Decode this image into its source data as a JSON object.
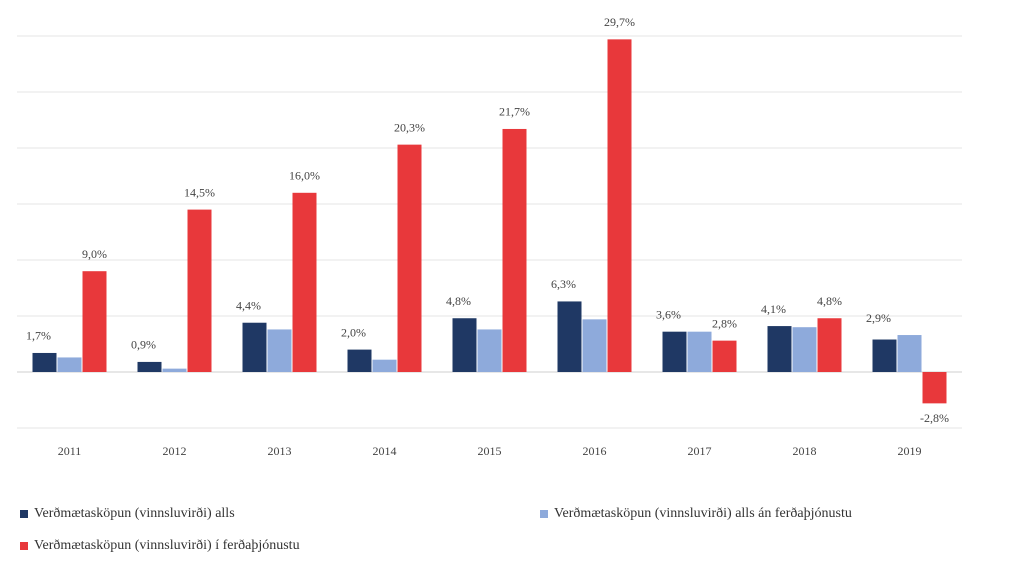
{
  "chart_data": {
    "type": "bar",
    "categories": [
      "2011",
      "2012",
      "2013",
      "2014",
      "2015",
      "2016",
      "2017",
      "2018",
      "2019"
    ],
    "series": [
      {
        "name": "Verðmætasköpun (vinnsluvirði) alls",
        "color": "#1f3864",
        "values": [
          1.7,
          0.9,
          4.4,
          2.0,
          4.8,
          6.3,
          3.6,
          4.1,
          2.9
        ],
        "value_labels": [
          "1,7%",
          "0,9%",
          "4,4%",
          "2,0%",
          "4,8%",
          "6,3%",
          "3,6%",
          "4,1%",
          "2,9%"
        ]
      },
      {
        "name": "Verðmætasköpun (vinnsluvirði) alls án ferðaþjónustu",
        "color": "#8eaadb",
        "values": [
          1.3,
          0.3,
          3.8,
          1.1,
          3.8,
          4.7,
          3.6,
          4.0,
          3.3
        ]
      },
      {
        "name": "Verðmætasköpun (vinnsluvirði) í ferðaþjónustu",
        "color": "#e8383b",
        "values": [
          9.0,
          14.5,
          16.0,
          20.3,
          21.7,
          29.7,
          2.8,
          4.8,
          -2.8
        ],
        "value_labels": [
          "9,0%",
          "14,5%",
          "16,0%",
          "20,3%",
          "21,7%",
          "29,7%",
          "2,8%",
          "4,8%",
          "-2,8%"
        ]
      }
    ],
    "ylim": [
      -5,
      30
    ],
    "yticks": [
      -5,
      0,
      5,
      10,
      15,
      20,
      25,
      30
    ],
    "grid": true
  }
}
